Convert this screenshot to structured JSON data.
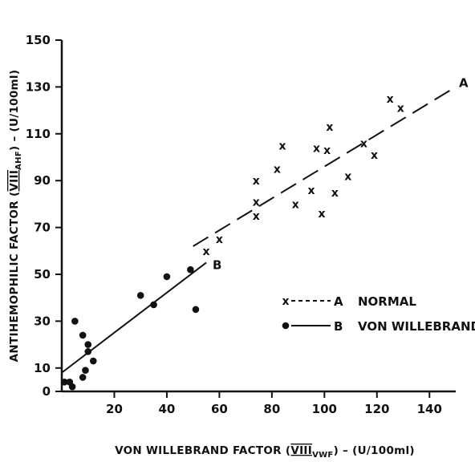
{
  "chart_data": {
    "type": "scatter",
    "title": "",
    "xlabel": "VON WILLEBRAND FACTOR (VIII VWF) – (U/100ml)",
    "xlabel_parts": {
      "pre": "VON WILLEBRAND FACTOR (",
      "roman": "VIII",
      "sub": "VWF",
      "post": ") – (U/100ml)"
    },
    "ylabel": "ANTIHEMOPHILIC FACTOR (VIII AHF) – (U/100ml)",
    "ylabel_parts": {
      "pre": "ANTIHEMOPHILIC FACTOR (",
      "roman": "VIII",
      "sub": "AHF",
      "post": ") – (U/100ml)"
    },
    "xlim": [
      0,
      150
    ],
    "ylim": [
      0,
      150
    ],
    "x_ticks": [
      "20",
      "40",
      "60",
      "80",
      "100",
      "120",
      "140"
    ],
    "y_ticks": [
      "0",
      "10",
      "30",
      "50",
      "70",
      "90",
      "110",
      "130",
      "150"
    ],
    "grid": false,
    "legend_position": "center-right",
    "series": [
      {
        "name": "NORMAL",
        "marker": "x",
        "line_style": "dashed",
        "line_label": "A",
        "fit_line": [
          [
            50,
            62
          ],
          [
            150,
            130
          ]
        ],
        "points": [
          [
            55,
            60
          ],
          [
            60,
            65
          ],
          [
            74,
            75
          ],
          [
            74,
            81
          ],
          [
            74,
            90
          ],
          [
            82,
            95
          ],
          [
            84,
            105
          ],
          [
            89,
            80
          ],
          [
            95,
            86
          ],
          [
            97,
            104
          ],
          [
            99,
            76
          ],
          [
            101,
            103
          ],
          [
            102,
            113
          ],
          [
            104,
            85
          ],
          [
            109,
            92
          ],
          [
            115,
            106
          ],
          [
            119,
            101
          ],
          [
            125,
            125
          ],
          [
            129,
            121
          ]
        ]
      },
      {
        "name": "VON WILLEBRAND'S",
        "marker": "dot",
        "line_style": "solid",
        "line_label": "B",
        "fit_line": [
          [
            0,
            8
          ],
          [
            55,
            55
          ]
        ],
        "points": [
          [
            1,
            4
          ],
          [
            3,
            4
          ],
          [
            4,
            2
          ],
          [
            5,
            30
          ],
          [
            8,
            6
          ],
          [
            8,
            24
          ],
          [
            9,
            9
          ],
          [
            10,
            17
          ],
          [
            10,
            20
          ],
          [
            12,
            13
          ],
          [
            30,
            41
          ],
          [
            35,
            37
          ],
          [
            40,
            49
          ],
          [
            49,
            52
          ],
          [
            51,
            35
          ]
        ]
      }
    ]
  },
  "legend": [
    {
      "letter": "A",
      "label": "NORMAL"
    },
    {
      "letter": "B",
      "label": "VON WILLEBRAND'S"
    }
  ]
}
